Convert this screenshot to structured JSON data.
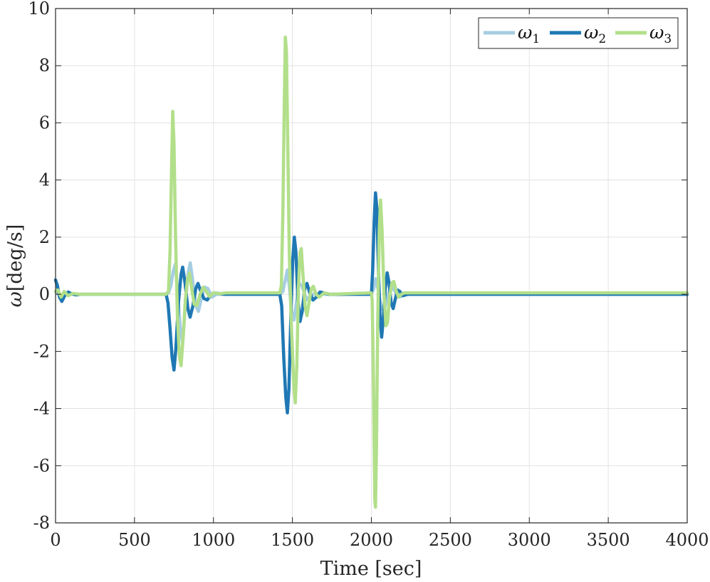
{
  "chart_data": {
    "type": "line",
    "title": "",
    "xlabel": "Time [sec]",
    "ylabel_symbol": "ω",
    "ylabel_units": "[deg/s]",
    "xlim": [
      0,
      4000
    ],
    "ylim": [
      -8,
      10
    ],
    "x_ticks": [
      "0",
      "500",
      "1000",
      "1500",
      "2000",
      "2500",
      "3000",
      "3500",
      "4000"
    ],
    "y_ticks": [
      "-8",
      "-6",
      "-4",
      "-2",
      "0",
      "2",
      "4",
      "6",
      "8",
      "10"
    ],
    "grid": true,
    "legend_position": "top-right",
    "series": [
      {
        "name": "ω1",
        "name_base": "ω",
        "name_sub": "1",
        "color": "#a6cee3",
        "points": [
          [
            0,
            0.1
          ],
          [
            30,
            -0.05
          ],
          [
            60,
            0.02
          ],
          [
            100,
            0
          ],
          [
            4000,
            0
          ],
          [
            700,
            0
          ],
          [
            715,
            0.05
          ],
          [
            730,
            0.3
          ],
          [
            745,
            0.8
          ],
          [
            758,
            1.05
          ],
          [
            772,
            0.2
          ],
          [
            790,
            -1.2
          ],
          [
            805,
            -1.7
          ],
          [
            822,
            -0.4
          ],
          [
            838,
            0.7
          ],
          [
            853,
            1.1
          ],
          [
            868,
            0.5
          ],
          [
            888,
            -0.4
          ],
          [
            905,
            -0.6
          ],
          [
            925,
            -0.1
          ],
          [
            945,
            0.25
          ],
          [
            965,
            0.2
          ],
          [
            990,
            -0.1
          ],
          [
            1020,
            0
          ],
          [
            1100,
            0
          ],
          [
            1420,
            0
          ],
          [
            1440,
            0.1
          ],
          [
            1455,
            0.5
          ],
          [
            1468,
            0.85
          ],
          [
            1480,
            0.3
          ],
          [
            1495,
            -0.6
          ],
          [
            1510,
            -0.9
          ],
          [
            1525,
            -0.3
          ],
          [
            1540,
            0.4
          ],
          [
            1560,
            0.3
          ],
          [
            1590,
            -0.2
          ],
          [
            1620,
            0
          ],
          [
            1700,
            0
          ],
          [
            2000,
            0
          ],
          [
            2015,
            0.2
          ],
          [
            2028,
            0.55
          ],
          [
            2042,
            0.2
          ],
          [
            2060,
            -0.4
          ],
          [
            2080,
            -0.6
          ],
          [
            2100,
            -0.1
          ],
          [
            2125,
            0.3
          ],
          [
            2150,
            0.1
          ],
          [
            2180,
            -0.1
          ],
          [
            2210,
            0
          ],
          [
            2300,
            0
          ],
          [
            4000,
            0
          ]
        ]
      },
      {
        "name": "ω2",
        "name_base": "ω",
        "name_sub": "2",
        "color": "#1f78b4",
        "points": [
          [
            0,
            0.5
          ],
          [
            12,
            0.3
          ],
          [
            25,
            -0.1
          ],
          [
            40,
            -0.25
          ],
          [
            58,
            -0.05
          ],
          [
            80,
            0.08
          ],
          [
            100,
            0.02
          ],
          [
            130,
            -0.02
          ],
          [
            160,
            0
          ],
          [
            700,
            0
          ],
          [
            712,
            -0.3
          ],
          [
            725,
            -1.2
          ],
          [
            738,
            -2.2
          ],
          [
            750,
            -2.65
          ],
          [
            762,
            -1.9
          ],
          [
            778,
            -0.3
          ],
          [
            795,
            0.7
          ],
          [
            805,
            0.95
          ],
          [
            820,
            0.4
          ],
          [
            838,
            -0.5
          ],
          [
            852,
            -0.8
          ],
          [
            870,
            -0.4
          ],
          [
            888,
            0.2
          ],
          [
            902,
            0.38
          ],
          [
            920,
            0.1
          ],
          [
            940,
            -0.15
          ],
          [
            960,
            -0.2
          ],
          [
            980,
            -0.05
          ],
          [
            1000,
            0.05
          ],
          [
            1030,
            0.03
          ],
          [
            1070,
            0
          ],
          [
            1420,
            0
          ],
          [
            1432,
            -0.4
          ],
          [
            1445,
            -2.2
          ],
          [
            1458,
            -3.6
          ],
          [
            1468,
            -4.15
          ],
          [
            1478,
            -3.3
          ],
          [
            1490,
            -0.8
          ],
          [
            1502,
            1.2
          ],
          [
            1512,
            2.0
          ],
          [
            1522,
            1.5
          ],
          [
            1535,
            -0.2
          ],
          [
            1548,
            -0.95
          ],
          [
            1562,
            -0.6
          ],
          [
            1578,
            0.2
          ],
          [
            1592,
            0.38
          ],
          [
            1610,
            0.05
          ],
          [
            1630,
            -0.2
          ],
          [
            1652,
            -0.1
          ],
          [
            1675,
            0.08
          ],
          [
            1700,
            0.05
          ],
          [
            1730,
            0
          ],
          [
            2000,
            0
          ],
          [
            2008,
            0.8
          ],
          [
            2018,
            2.6
          ],
          [
            2026,
            3.55
          ],
          [
            2035,
            3.0
          ],
          [
            2045,
            0.8
          ],
          [
            2055,
            -0.8
          ],
          [
            2065,
            -1.5
          ],
          [
            2075,
            -0.9
          ],
          [
            2088,
            0.2
          ],
          [
            2100,
            0.75
          ],
          [
            2112,
            0.4
          ],
          [
            2125,
            -0.3
          ],
          [
            2138,
            -0.5
          ],
          [
            2150,
            -0.2
          ],
          [
            2165,
            0.15
          ],
          [
            2180,
            0.1
          ],
          [
            2200,
            -0.05
          ],
          [
            2230,
            0
          ],
          [
            4000,
            0
          ]
        ]
      },
      {
        "name": "ω3",
        "name_base": "ω",
        "name_sub": "3",
        "color": "#b2df8a",
        "points": [
          [
            0,
            0.1
          ],
          [
            15,
            0.15
          ],
          [
            35,
            -0.1
          ],
          [
            55,
            0.1
          ],
          [
            80,
            -0.05
          ],
          [
            110,
            0.03
          ],
          [
            150,
            0
          ],
          [
            700,
            0
          ],
          [
            715,
            0.1
          ],
          [
            725,
            1.5
          ],
          [
            735,
            4.5
          ],
          [
            742,
            6.4
          ],
          [
            750,
            5.3
          ],
          [
            760,
            2.0
          ],
          [
            772,
            -0.8
          ],
          [
            785,
            -2.2
          ],
          [
            795,
            -2.5
          ],
          [
            808,
            -1.5
          ],
          [
            822,
            -0.2
          ],
          [
            835,
            0.5
          ],
          [
            848,
            0.75
          ],
          [
            862,
            0.2
          ],
          [
            878,
            -0.35
          ],
          [
            895,
            -0.4
          ],
          [
            915,
            0
          ],
          [
            935,
            0.25
          ],
          [
            955,
            0.1
          ],
          [
            975,
            -0.08
          ],
          [
            1000,
            0.05
          ],
          [
            1040,
            0.02
          ],
          [
            1080,
            0.05
          ],
          [
            1420,
            0.05
          ],
          [
            1430,
            0.3
          ],
          [
            1440,
            3.0
          ],
          [
            1448,
            6.5
          ],
          [
            1455,
            9.0
          ],
          [
            1462,
            8.5
          ],
          [
            1470,
            5.5
          ],
          [
            1480,
            1.5
          ],
          [
            1492,
            -0.9
          ],
          [
            1500,
            -2.0
          ],
          [
            1510,
            -3.3
          ],
          [
            1518,
            -3.8
          ],
          [
            1528,
            -2.5
          ],
          [
            1538,
            0.2
          ],
          [
            1548,
            1.45
          ],
          [
            1556,
            1.6
          ],
          [
            1568,
            0.6
          ],
          [
            1580,
            -0.4
          ],
          [
            1592,
            -0.75
          ],
          [
            1605,
            -0.3
          ],
          [
            1620,
            0.2
          ],
          [
            1632,
            0.28
          ],
          [
            1650,
            0
          ],
          [
            1670,
            -0.1
          ],
          [
            1700,
            0.05
          ],
          [
            1740,
            0
          ],
          [
            2000,
            0.05
          ],
          [
            2005,
            -0.2
          ],
          [
            2012,
            -2.5
          ],
          [
            2018,
            -5.5
          ],
          [
            2022,
            -7.2
          ],
          [
            2026,
            -7.45
          ],
          [
            2032,
            -5.5
          ],
          [
            2040,
            -1.0
          ],
          [
            2050,
            2.2
          ],
          [
            2058,
            3.3
          ],
          [
            2068,
            2.2
          ],
          [
            2080,
            0.0
          ],
          [
            2092,
            -1.1
          ],
          [
            2102,
            -1.0
          ],
          [
            2115,
            -0.1
          ],
          [
            2130,
            0.4
          ],
          [
            2142,
            0.45
          ],
          [
            2158,
            0.1
          ],
          [
            2172,
            -0.1
          ],
          [
            2190,
            0
          ],
          [
            2210,
            0.05
          ],
          [
            4000,
            0.05
          ]
        ]
      }
    ]
  }
}
